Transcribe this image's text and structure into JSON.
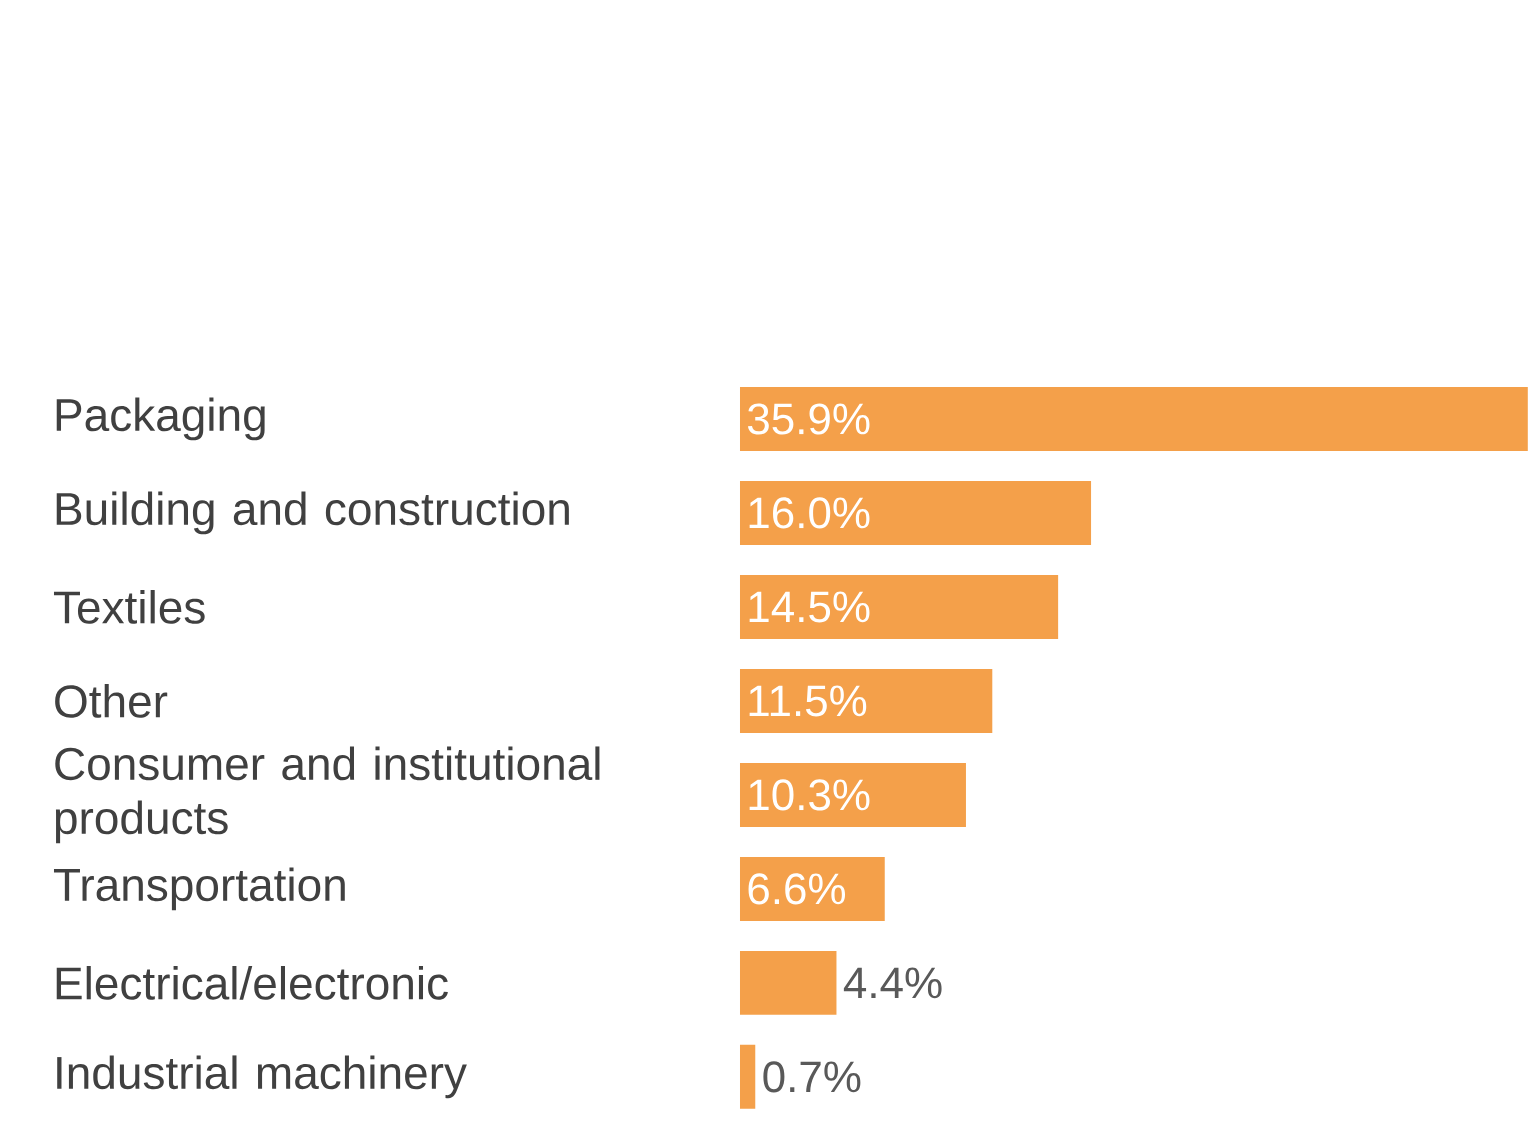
{
  "chart_data": {
    "type": "bar",
    "orientation": "horizontal",
    "categories": [
      "Packaging",
      "Building and construction",
      "Textiles",
      "Other",
      "Consumer and institutional products",
      "Transportation",
      "Electrical/electronic",
      "Industrial machinery"
    ],
    "values": [
      35.9,
      16.0,
      14.5,
      11.5,
      10.3,
      6.6,
      4.4,
      0.7
    ],
    "value_labels": [
      "35.9%",
      "16.0%",
      "14.5%",
      "11.5%",
      "10.3%",
      "6.6%",
      "4.4%",
      "0.7%"
    ],
    "color": "#f4a04a"
  }
}
